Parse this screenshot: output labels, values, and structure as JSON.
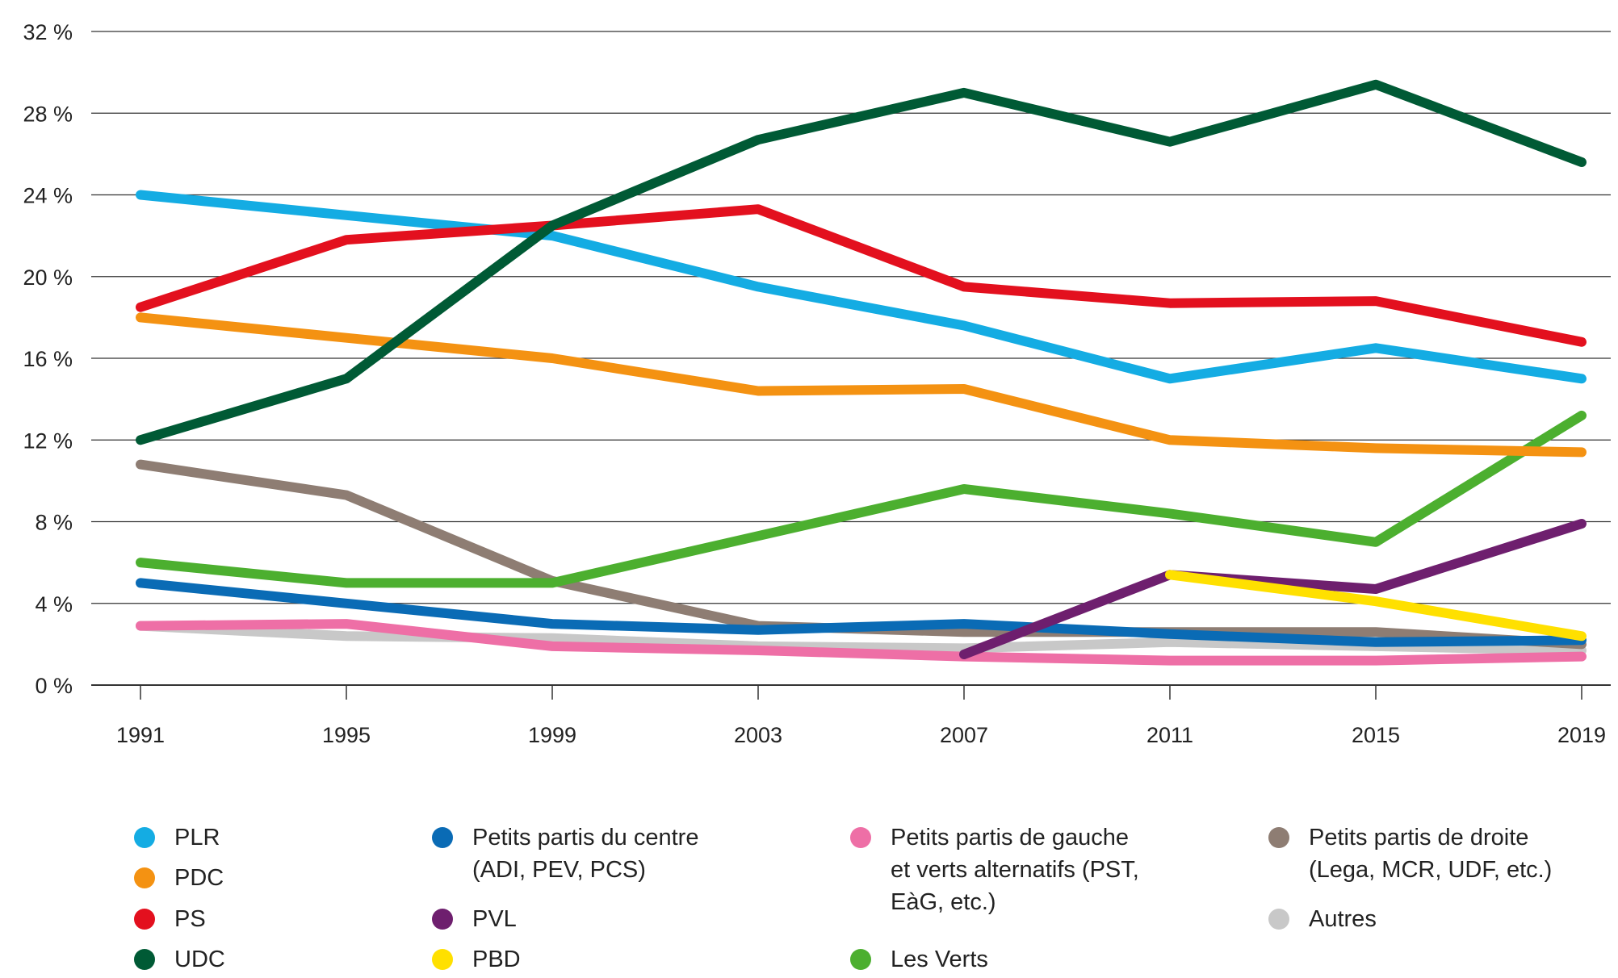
{
  "chart_data": {
    "type": "line",
    "title": "",
    "xlabel": "",
    "ylabel": "",
    "x": [
      "1991",
      "1995",
      "1999",
      "2003",
      "2007",
      "2011",
      "2015",
      "2019"
    ],
    "ylim": [
      0,
      32
    ],
    "yticks": [
      0,
      4,
      8,
      12,
      16,
      20,
      24,
      28,
      32
    ],
    "ytick_labels": [
      "0 %",
      "4 %",
      "8 %",
      "12 %",
      "16 %",
      "20 %",
      "24 %",
      "28 %",
      "32 %"
    ],
    "grid": "horizontal",
    "legend_position": "bottom",
    "series": [
      {
        "name": "Autres",
        "color": "#c8c8c8",
        "values": [
          2.9,
          2.4,
          2.3,
          1.9,
          1.8,
          2.1,
          1.9,
          1.7
        ]
      },
      {
        "name": "Petits partis de gauche\net verts alternatifs (PST,\nEàG, etc.)",
        "color": "#ee6fa6",
        "values": [
          2.9,
          3.0,
          1.9,
          1.7,
          1.4,
          1.2,
          1.2,
          1.4
        ]
      },
      {
        "name": "Petits partis de droite\n(Lega, MCR, UDF, etc.)",
        "color": "#8e7d73",
        "values": [
          10.8,
          9.3,
          5.1,
          2.9,
          2.6,
          2.6,
          2.6,
          2.0
        ]
      },
      {
        "name": "Petits partis du centre\n(ADI, PEV, PCS)",
        "color": "#0a6bb5",
        "values": [
          5.0,
          4.0,
          3.0,
          2.7,
          3.0,
          2.5,
          2.1,
          2.2
        ]
      },
      {
        "name": "PVL",
        "color": "#6e1f6e",
        "values": [
          null,
          null,
          null,
          null,
          1.5,
          5.4,
          4.7,
          7.9
        ]
      },
      {
        "name": "PBD",
        "color": "#ffe000",
        "values": [
          null,
          null,
          null,
          null,
          null,
          5.4,
          4.1,
          2.4
        ]
      },
      {
        "name": "Les Verts",
        "color": "#4caf2f",
        "values": [
          6.0,
          5.0,
          5.0,
          7.3,
          9.6,
          8.4,
          7.0,
          13.2
        ]
      },
      {
        "name": "PDC",
        "color": "#f49212",
        "values": [
          18.0,
          17.0,
          16.0,
          14.4,
          14.5,
          12.0,
          11.6,
          11.4
        ]
      },
      {
        "name": "PLR",
        "color": "#14ace3",
        "values": [
          24.0,
          23.0,
          22.0,
          19.5,
          17.6,
          15.0,
          16.5,
          15.0
        ]
      },
      {
        "name": "PS",
        "color": "#e3101e",
        "values": [
          18.5,
          21.8,
          22.5,
          23.3,
          19.5,
          18.7,
          18.8,
          16.8
        ]
      },
      {
        "name": "UDC",
        "color": "#005a35",
        "values": [
          12.0,
          15.0,
          22.5,
          26.7,
          29.0,
          26.6,
          29.4,
          25.6
        ]
      }
    ]
  },
  "legend": {
    "items": [
      {
        "name": "PLR",
        "color": "#14ace3"
      },
      {
        "name": "PDC",
        "color": "#f49212"
      },
      {
        "name": "PS",
        "color": "#e3101e"
      },
      {
        "name": "UDC",
        "color": "#005a35"
      },
      {
        "name": "Petits partis du centre\n(ADI, PEV, PCS)",
        "color": "#0a6bb5"
      },
      {
        "name": "PVL",
        "color": "#6e1f6e"
      },
      {
        "name": "PBD",
        "color": "#ffe000"
      },
      {
        "name": "Petits partis de gauche\net verts alternatifs (PST,\nEàG, etc.)",
        "color": "#ee6fa6"
      },
      {
        "name": "Les Verts",
        "color": "#4caf2f"
      },
      {
        "name": "Petits partis de droite\n(Lega, MCR, UDF, etc.)",
        "color": "#8e7d73"
      },
      {
        "name": "Autres",
        "color": "#c8c8c8"
      }
    ]
  }
}
